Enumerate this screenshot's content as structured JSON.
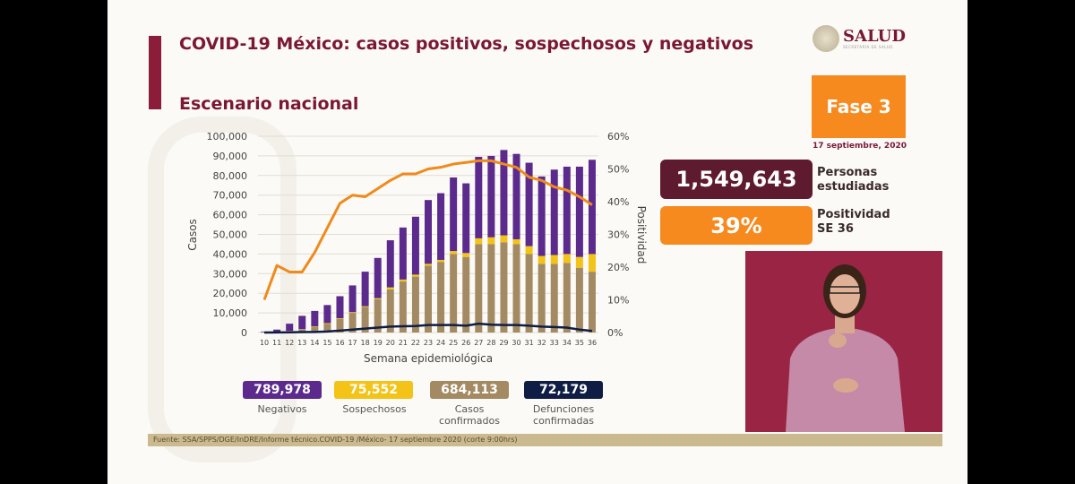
{
  "header": {
    "title": "COVID-19 México: casos positivos, sospechosos y negativos",
    "subtitle": "Escenario nacional",
    "logo": "SALUD",
    "logo_sub": "SECRETARÍA DE SALUD"
  },
  "phase": {
    "label": "Fase 3",
    "date": "17 septiembre, 2020"
  },
  "kpis": [
    {
      "value": "1,549,643",
      "label1": "Personas",
      "label2": "estudiadas",
      "color": "#5e1a2e"
    },
    {
      "value": "39%",
      "label1": "Positividad",
      "label2": "SE 36",
      "color": "#f68a1f"
    }
  ],
  "legend": [
    {
      "value": "789,978",
      "label": "Negativos",
      "label2": "",
      "color": "#5b2a8c"
    },
    {
      "value": "75,552",
      "label": "Sospechosos",
      "label2": "",
      "color": "#f3c318"
    },
    {
      "value": "684,113",
      "label": "Casos",
      "label2": "confirmados",
      "color": "#a38a62"
    },
    {
      "value": "72,179",
      "label": "Defunciones",
      "label2": "confirmadas",
      "color": "#0f1d45"
    }
  ],
  "source": "Fuente: SSA/SPPS/DGE/InDRE/Informe técnico.COVID-19 /México- 17 septiembre 2020 (corte 9:00hrs)",
  "chart_data": {
    "type": "bar",
    "xlabel": "Semana epidemiológica",
    "ylabel": "Casos",
    "y2label": "Positividad",
    "ylim": [
      0,
      100000
    ],
    "y2lim": [
      0,
      60
    ],
    "yticks": [
      "0",
      "10,000",
      "20,000",
      "30,000",
      "40,000",
      "50,000",
      "60,000",
      "70,000",
      "80,000",
      "90,000",
      "100,000"
    ],
    "y2ticks": [
      "0%",
      "10%",
      "20%",
      "30%",
      "40%",
      "50%",
      "60%"
    ],
    "categories": [
      "10",
      "11",
      "12",
      "13",
      "14",
      "15",
      "16",
      "17",
      "18",
      "19",
      "20",
      "21",
      "22",
      "23",
      "24",
      "25",
      "26",
      "27",
      "28",
      "29",
      "30",
      "31",
      "32",
      "33",
      "34",
      "35",
      "36"
    ],
    "series": [
      {
        "name": "Casos confirmados",
        "kind": "bar",
        "color": "#a38a62",
        "values": [
          200,
          400,
          800,
          1500,
          3000,
          4500,
          7000,
          10000,
          13000,
          17000,
          22000,
          26000,
          28500,
          34000,
          36000,
          40000,
          38500,
          45000,
          45000,
          46000,
          45000,
          40000,
          35000,
          35000,
          35500,
          33000,
          31000
        ]
      },
      {
        "name": "Sospechosos",
        "kind": "bar",
        "color": "#f3c318",
        "values": [
          50,
          100,
          100,
          200,
          200,
          300,
          300,
          400,
          400,
          500,
          1000,
          1000,
          1000,
          1000,
          1000,
          1500,
          2000,
          3000,
          3500,
          3500,
          2500,
          4000,
          4000,
          4500,
          4500,
          5500,
          9000
        ]
      },
      {
        "name": "Negativos",
        "kind": "bar",
        "color": "#5b2a8c",
        "values": [
          250,
          1000,
          3600,
          6800,
          7800,
          9200,
          11200,
          13600,
          17600,
          20500,
          24000,
          26500,
          29500,
          32500,
          34000,
          37500,
          35500,
          41500,
          41500,
          43500,
          43500,
          42500,
          40500,
          43500,
          44500,
          46000,
          48000
        ]
      },
      {
        "name": "Defunciones",
        "kind": "line",
        "color": "#0f1d45",
        "values": [
          0,
          50,
          100,
          200,
          300,
          500,
          1000,
          1500,
          2000,
          2500,
          3000,
          3200,
          3300,
          3800,
          3800,
          3800,
          3500,
          4500,
          4000,
          3800,
          3800,
          3500,
          3000,
          2800,
          2500,
          1500,
          800
        ]
      },
      {
        "name": "Positividad",
        "kind": "line",
        "axis": "right",
        "color": "#f08a1c",
        "values": [
          10,
          20.5,
          18.5,
          18.5,
          24.5,
          32,
          39.5,
          42,
          41.5,
          44,
          46.5,
          48.5,
          48.5,
          50,
          50.5,
          51.5,
          52,
          52.5,
          52.5,
          51.5,
          50.5,
          47.5,
          46.5,
          44.5,
          43.5,
          41.5,
          39
        ]
      }
    ]
  }
}
